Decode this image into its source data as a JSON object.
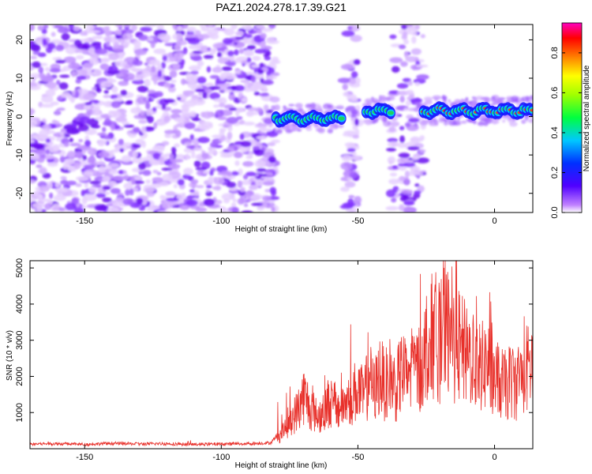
{
  "title": "PAZ1.2024.278.17.39.G21",
  "chart_data": [
    {
      "type": "heatmap",
      "xlabel": "Height of straight line (km)",
      "ylabel": "Frequency (Hz)",
      "xlim": [
        -170,
        14
      ],
      "ylim": [
        -25,
        24
      ],
      "xticks": [
        -150,
        -100,
        -50,
        0
      ],
      "yticks": [
        -20,
        -10,
        0,
        10,
        20
      ],
      "colorbar": {
        "label": "Normalized spectral amplitude",
        "range": [
          0,
          0.95
        ],
        "ticks": [
          0.0,
          0.2,
          0.4,
          0.6,
          0.8
        ]
      },
      "colors": {
        "noise": "#8a2be2",
        "signal_core": "#ff3030",
        "signal_mid": "#20d060",
        "signal_edge": "#1a1aff"
      },
      "regions": [
        {
          "x_from": -170,
          "x_to": -80,
          "kind": "noise"
        },
        {
          "x_from": -80,
          "x_to": -56,
          "kind": "signal",
          "y_center": -0.5
        },
        {
          "x_from": -55,
          "x_to": -50,
          "kind": "noise"
        },
        {
          "x_from": -47,
          "x_to": -38,
          "kind": "signal",
          "y_center": 1.5
        },
        {
          "x_from": -38,
          "x_to": -36,
          "kind": "noise"
        },
        {
          "x_from": -34,
          "x_to": -26,
          "kind": "noise"
        },
        {
          "x_from": -26,
          "x_to": 14,
          "kind": "signal",
          "y_center": 1.5
        }
      ]
    },
    {
      "type": "line",
      "xlabel": "Height of straight line (km)",
      "ylabel": "SNR (10 * v/v)",
      "xlim": [
        -170,
        14
      ],
      "ylim": [
        0,
        5200
      ],
      "xticks": [
        -150,
        -100,
        -50,
        0
      ],
      "yticks": [
        1000,
        2000,
        3000,
        4000,
        5000
      ],
      "color": "#e8302a",
      "x": [
        -170,
        -160,
        -150,
        -140,
        -130,
        -120,
        -110,
        -100,
        -90,
        -82,
        -78,
        -75,
        -72,
        -70,
        -68,
        -66,
        -64,
        -62,
        -60,
        -58,
        -55,
        -52,
        -50,
        -48,
        -46,
        -44,
        -42,
        -40,
        -38,
        -36,
        -34,
        -32,
        -30,
        -28,
        -26,
        -24,
        -22,
        -20,
        -18,
        -16,
        -14,
        -12,
        -10,
        -8,
        -6,
        -4,
        -2,
        0,
        2,
        4,
        6,
        8,
        10,
        12,
        14
      ],
      "values": [
        130,
        140,
        120,
        150,
        130,
        140,
        120,
        130,
        140,
        160,
        500,
        900,
        1300,
        1800,
        1500,
        1200,
        1100,
        1400,
        1600,
        1300,
        1500,
        1800,
        2000,
        1700,
        2300,
        1900,
        2500,
        2100,
        2400,
        2000,
        2600,
        2300,
        2900,
        2600,
        3200,
        3600,
        3900,
        3500,
        4000,
        3700,
        3500,
        3300,
        3000,
        3200,
        2900,
        2700,
        3000,
        2400,
        2200,
        2100,
        2300,
        2200,
        2500,
        2700,
        2600
      ]
    }
  ]
}
